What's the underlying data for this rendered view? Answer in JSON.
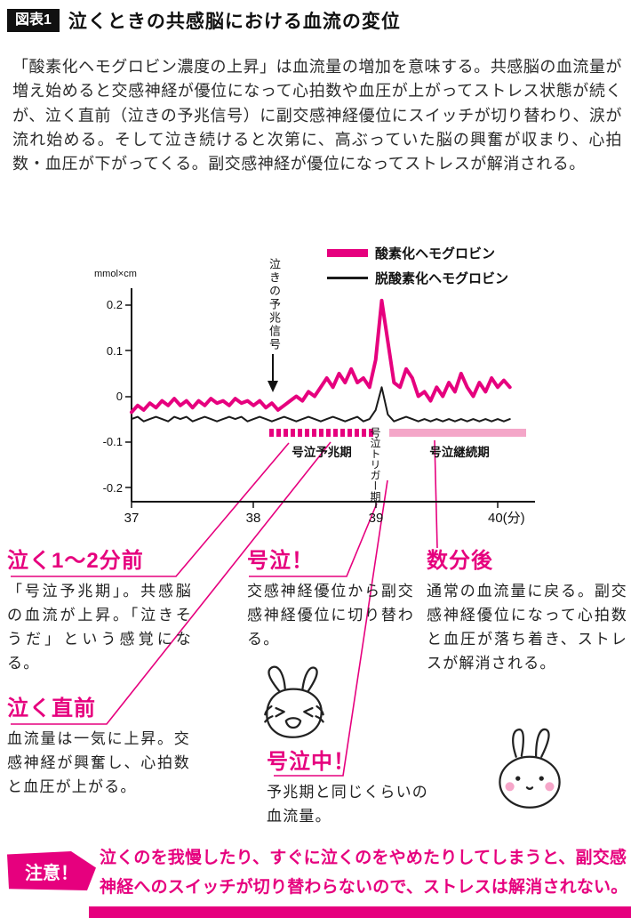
{
  "header": {
    "tag": "図表1",
    "title": "泣くときの共感脳における血流の変位"
  },
  "intro": "「酸素化ヘモグロビン濃度の上昇」は血流量の増加を意味する。共感脳の血流量が増え始めると交感神経が優位になって心拍数や血圧が上がってストレス状態が続くが、泣く直前（泣きの予兆信号）に副交感神経優位にスイッチが切り替わり、涙が流れ始める。そして泣き続けると次第に、高ぶっていた脳の興奮が収まり、心拍数・血圧が下がってくる。副交感神経が優位になってストレスが解消される。",
  "colors": {
    "pink": "#e6007e",
    "light_pink": "#f4a6c8",
    "ink": "#111111"
  },
  "chart_data": {
    "type": "line",
    "unit_label": "mmol×cm",
    "x_ticks": [
      "37",
      "38",
      "39",
      "40(分)"
    ],
    "y_ticks": [
      "0.2",
      "0.1",
      "0",
      "-0.1",
      "-0.2"
    ],
    "xlim": [
      37,
      40.3
    ],
    "ylim": [
      -0.25,
      0.27
    ],
    "grid": false,
    "legend_position": "top-right",
    "annotations": {
      "arrow_label": "泣きの予兆信号",
      "region1": "号泣予兆期",
      "trigger": "号泣トリガー期",
      "region2": "号泣継続期"
    },
    "regions": [
      {
        "label": "号泣予兆期",
        "x_from": 38.13,
        "x_to": 38.99,
        "style": "dashed"
      },
      {
        "label": "号泣継続期",
        "x_from": 39.11,
        "x_to": 40.23,
        "style": "solid"
      }
    ],
    "series": [
      {
        "name": "酸素化ヘモグロビン",
        "color": "#e6007e",
        "width": 4,
        "x_start": 37,
        "x_step": 0.05,
        "values": [
          -0.035,
          -0.02,
          -0.03,
          -0.015,
          -0.025,
          -0.01,
          -0.02,
          -0.005,
          -0.02,
          -0.01,
          -0.025,
          -0.01,
          -0.02,
          -0.005,
          -0.015,
          -0.01,
          -0.02,
          -0.005,
          -0.015,
          -0.01,
          -0.02,
          -0.01,
          -0.025,
          -0.015,
          -0.03,
          -0.02,
          -0.01,
          0,
          -0.01,
          0.01,
          0,
          0.02,
          0.04,
          0.02,
          0.05,
          0.03,
          0.06,
          0.03,
          0.04,
          0.02,
          0.08,
          0.21,
          0.12,
          0.03,
          0.02,
          0.06,
          0.04,
          0,
          0.01,
          -0.01,
          0.02,
          0,
          0.03,
          0.01,
          0.05,
          0.02,
          0,
          0.03,
          0.01,
          0.04,
          0.02,
          0.035,
          0.02
        ]
      },
      {
        "name": "脱酸素化ヘモグロビン",
        "color": "#1a1a1a",
        "width": 2,
        "x_start": 37,
        "x_step": 0.05,
        "values": [
          -0.05,
          -0.045,
          -0.055,
          -0.05,
          -0.045,
          -0.05,
          -0.055,
          -0.045,
          -0.05,
          -0.045,
          -0.055,
          -0.05,
          -0.045,
          -0.05,
          -0.055,
          -0.05,
          -0.045,
          -0.05,
          -0.045,
          -0.055,
          -0.05,
          -0.045,
          -0.05,
          -0.055,
          -0.05,
          -0.045,
          -0.05,
          -0.055,
          -0.05,
          -0.045,
          -0.05,
          -0.055,
          -0.05,
          -0.045,
          -0.05,
          -0.055,
          -0.05,
          -0.045,
          -0.055,
          -0.05,
          -0.03,
          0.02,
          -0.04,
          -0.055,
          -0.05,
          -0.045,
          -0.05,
          -0.055,
          -0.05,
          -0.055,
          -0.05,
          -0.055,
          -0.05,
          -0.055,
          -0.05,
          -0.055,
          -0.05,
          -0.055,
          -0.05,
          -0.055,
          -0.05,
          -0.055,
          -0.05
        ]
      }
    ]
  },
  "callouts": [
    {
      "heading": "泣く1〜2分前",
      "body": "「号泣予兆期」。共感脳の血流が上昇。「泣きそうだ」という感覚になる。"
    },
    {
      "heading": "号泣！",
      "body": "交感神経優位から副交感神経優位に切り替わる。"
    },
    {
      "heading": "数分後",
      "body": "通常の血流量に戻る。副交感神経優位になって心拍数と血圧が落ち着き、ストレスが解消される。"
    },
    {
      "heading": "泣く直前",
      "body": "血流量は一気に上昇。交感神経が興奮し、心拍数と血圧が上がる。"
    },
    {
      "heading": "号泣中！",
      "body": "予兆期と同じくらいの血流量。"
    }
  ],
  "notice": {
    "label": "注意！",
    "text": "泣くのを我慢したり、すぐに泣くのをやめたりしてしまうと、副交感神経へのスイッチが切り替わらないので、ストレスは解消されない。"
  }
}
